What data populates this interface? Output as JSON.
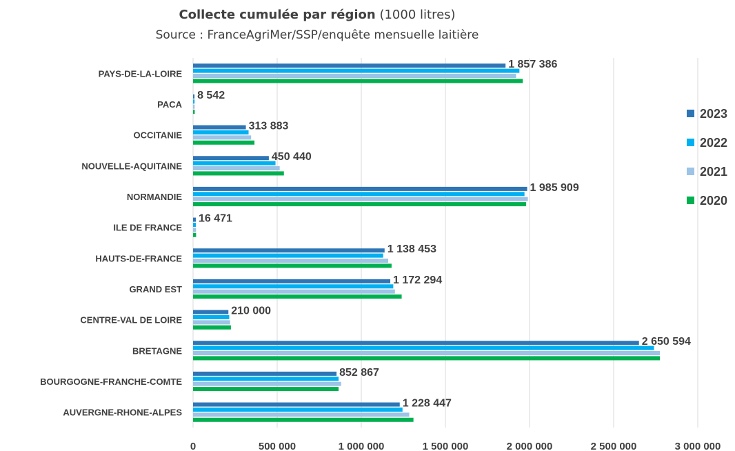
{
  "chart_data": {
    "type": "bar",
    "orientation": "horizontal",
    "title_bold": "Collecte cumulée par région",
    "title_rest": "(1000 litres)",
    "subtitle": "Source : FranceAgriMer/SSP/enquête mensuelle laitière",
    "categories": [
      "PAYS-DE-LA-LOIRE",
      "PACA",
      "OCCITANIE",
      "NOUVELLE-AQUITAINE",
      "NORMANDIE",
      "ILE DE FRANCE",
      "HAUTS-DE-FRANCE",
      "GRAND EST",
      "CENTRE-VAL DE LOIRE",
      "BRETAGNE",
      "BOURGOGNE-FRANCHE-COMTE",
      "AUVERGNE-RHONE-ALPES"
    ],
    "series": [
      {
        "name": "2023",
        "color": "#2E75B6",
        "values": [
          1857386,
          8542,
          313883,
          450440,
          1985909,
          16471,
          1138453,
          1172294,
          210000,
          2650594,
          852867,
          1228447
        ]
      },
      {
        "name": "2022",
        "color": "#00B0F0",
        "values": [
          1940000,
          9000,
          330000,
          490000,
          1970000,
          17000,
          1130000,
          1190000,
          215000,
          2740000,
          865000,
          1245000
        ]
      },
      {
        "name": "2021",
        "color": "#9DC3E6",
        "values": [
          1920000,
          9500,
          345000,
          515000,
          1990000,
          17500,
          1160000,
          1200000,
          220000,
          2775000,
          880000,
          1285000
        ]
      },
      {
        "name": "2020",
        "color": "#00B050",
        "values": [
          1960000,
          10000,
          365000,
          540000,
          1980000,
          18000,
          1180000,
          1240000,
          225000,
          2775000,
          865000,
          1310000
        ]
      }
    ],
    "data_labels": [
      "1 857 386",
      "8 542",
      "313 883",
      "450 440",
      "1 985 909",
      "16 471",
      "1 138 453",
      "1 172 294",
      "210 000",
      "2 650 594",
      "852 867",
      "1 228 447"
    ],
    "x_ticks": [
      0,
      500000,
      1000000,
      1500000,
      2000000,
      2500000,
      3000000
    ],
    "x_tick_labels": [
      "0",
      "500 000",
      "1 000 000",
      "1 500 000",
      "2 000 000",
      "2 500 000",
      "3 000 000"
    ],
    "xlim": [
      0,
      3000000
    ],
    "grid": true,
    "legend_position": "right"
  }
}
